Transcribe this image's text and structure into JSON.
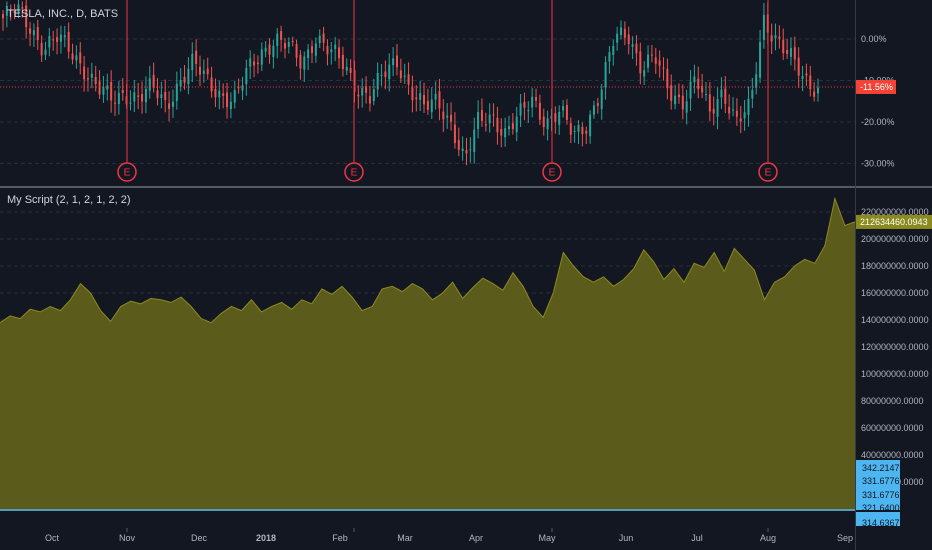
{
  "symbol_title": "TESLA, INC., D, BATS",
  "indicator_title": "My Script (2, 1, 2, 1, 2, 2)",
  "colors": {
    "background": "#131722",
    "up": "#26a69a",
    "down": "#ef5350",
    "area_fill": "#5b5b1c",
    "area_line": "#8c8a1e",
    "grid": "#2a2e39",
    "earnings": "#f23645",
    "current_pct_bg": "#f44336",
    "indicator_last_bg": "#8a8a1f",
    "min_label_bg": "#4db5ef"
  },
  "time_axis": {
    "labels": [
      "Oct",
      "Nov",
      "Dec",
      "2018",
      "Feb",
      "Mar",
      "Apr",
      "May",
      "Jun",
      "Jul",
      "Aug",
      "Sep"
    ]
  },
  "price_axis": {
    "labels": [
      "0.00%",
      "-10.00%",
      "-20.00%",
      "-30.00%"
    ],
    "current_label": "-11.56%"
  },
  "earnings_marker": "E",
  "indicator_axis": {
    "labels": [
      "220000000.0000",
      "200000000.0000",
      "180000000.0000",
      "160000000.0000",
      "140000000.0000",
      "120000000.0000",
      "100000000.0000",
      "80000000.0000",
      "60000000.0000",
      "40000000.0000",
      "20000000.0000"
    ],
    "last_value_label": "212634460.0943",
    "min_labels": [
      "342.2147",
      "331.6776",
      "331.6776",
      "321.6400",
      "314.6367"
    ]
  },
  "chart_data": [
    {
      "type": "candlestick",
      "title": "TESLA, INC., D, BATS",
      "scale": "percent",
      "y_axis_ticks": [
        "0.00%",
        "-10.00%",
        "-20.00%",
        "-30.00%"
      ],
      "ylim": [
        -33,
        8
      ],
      "current_percent": -11.56,
      "earnings_events": [
        "Nov",
        "Feb",
        "May",
        "Aug"
      ],
      "close_percent_trajectory": [
        5,
        7,
        3,
        -2,
        0,
        -3,
        -7,
        -12,
        -15,
        -13,
        -14,
        -12,
        -16,
        -10,
        -6,
        -10,
        -13,
        -15,
        -8,
        -3,
        0,
        -2,
        -6,
        1,
        -3,
        -6,
        -11,
        -14,
        -9,
        -5,
        -12,
        -17,
        -15,
        -20,
        -30,
        -20,
        -18,
        -23,
        -19,
        -14,
        -20,
        -18,
        -23,
        -20,
        -13,
        0,
        2,
        -7,
        -5,
        -12,
        -15,
        -10,
        -18,
        -12,
        -20,
        -17,
        5,
        0,
        -5,
        -10,
        -11.56
      ]
    },
    {
      "type": "area",
      "title": "My Script (2, 1, 2, 1, 2, 2)",
      "y_axis_ticks": [
        "220000000.0000",
        "200000000.0000",
        "180000000.0000",
        "160000000.0000",
        "140000000.0000",
        "120000000.0000",
        "100000000.0000",
        "80000000.0000",
        "60000000.0000",
        "40000000.0000",
        "20000000.0000"
      ],
      "ylim": [
        0,
        232000000
      ],
      "last_value": 212634460.0943,
      "values": [
        138000000,
        143000000,
        141000000,
        148000000,
        146000000,
        150000000,
        147000000,
        155000000,
        167000000,
        160000000,
        147000000,
        139000000,
        150000000,
        154000000,
        152000000,
        156000000,
        155000000,
        153000000,
        157000000,
        150000000,
        141000000,
        138000000,
        145000000,
        150000000,
        147000000,
        155000000,
        146000000,
        150000000,
        153000000,
        148000000,
        155000000,
        152000000,
        163000000,
        159000000,
        165000000,
        157000000,
        147000000,
        150000000,
        163000000,
        165000000,
        161000000,
        167000000,
        163000000,
        155000000,
        160000000,
        168000000,
        156000000,
        164000000,
        171000000,
        167000000,
        162000000,
        175000000,
        165000000,
        150000000,
        142000000,
        160000000,
        190000000,
        180000000,
        172000000,
        168000000,
        172000000,
        165000000,
        170000000,
        178000000,
        192000000,
        183000000,
        170000000,
        178000000,
        168000000,
        182000000,
        179000000,
        190000000,
        176000000,
        193000000,
        185000000,
        177000000,
        155000000,
        168000000,
        172000000,
        180000000,
        185000000,
        182000000,
        195000000,
        230000000,
        210000000,
        212634460.0943
      ]
    }
  ]
}
